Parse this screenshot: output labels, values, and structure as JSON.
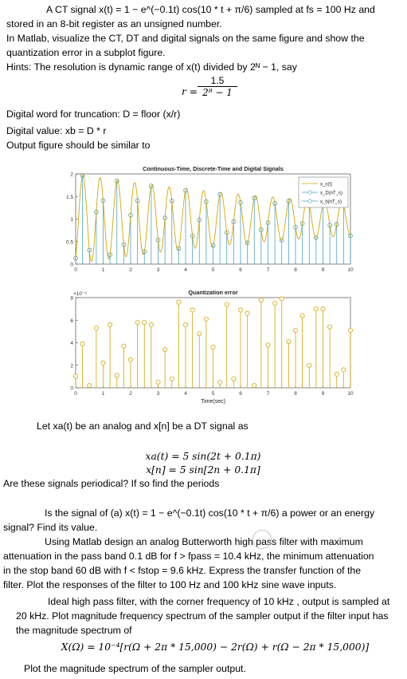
{
  "p1": {
    "l1": "A CT signal x(t) = 1 − e^(−0.1t) cos(10 * t + π/6) sampled at fs = 100 Hz and",
    "l2": "stored in an 8-bit register as an unsigned number.",
    "l3": "In Matlab, visualize the CT, DT and digital signals on the same figure and show the",
    "l4": "quantization error in a subplot figure.",
    "l5": "Hints: The resolution is dynamic range of  x(t) divided by 2ᴺ − 1, say",
    "frac_num": "1.5",
    "frac_lhs": "r =",
    "frac_den": "2⁸ − 1",
    "l6": "Digital word for truncation:  D = floor (x/r)",
    "l7": "Digital value:  xb = D * r",
    "l8": "Output figure should be similar to"
  },
  "chart_data": [
    {
      "type": "line",
      "title": "Continuous-Time, Discrete-Time and Digital Signals",
      "xlim": [
        0,
        10
      ],
      "ylim": [
        0,
        2
      ],
      "xticks": [
        "0",
        "1",
        "2",
        "3",
        "4",
        "5",
        "6",
        "7",
        "8",
        "9",
        "10"
      ],
      "yticks": [
        "0",
        "0.5",
        "1",
        "1.5",
        "2"
      ],
      "legend": [
        "x_c(t)",
        "x_D(nT_s)",
        "x_b(nT_s)"
      ],
      "legend_position": "top-right",
      "colors": {
        "continuous": "#d4a600",
        "discrete": "#4aa3c8",
        "digital": "#4aa3c8"
      },
      "signal": "x(t) = 1 - exp(-0.1t) cos(10t + pi/6)",
      "sample_x": [
        0,
        0.25,
        0.5,
        0.75,
        1,
        1.25,
        1.5,
        1.75,
        2,
        2.25,
        2.5,
        2.75,
        3,
        3.25,
        3.5,
        3.75,
        4,
        4.25,
        4.5,
        4.75,
        5,
        5.25,
        5.5,
        5.75,
        6,
        6.25,
        6.5,
        6.75,
        7,
        7.25,
        7.5,
        7.75,
        8,
        8.25,
        8.5,
        8.75,
        9,
        9.25,
        9.5,
        9.75,
        10
      ]
    },
    {
      "type": "scatter",
      "title": "Quantization error",
      "xlabel": "Time(sec)",
      "exponent": "×10⁻³",
      "xlim": [
        0,
        10
      ],
      "ylim": [
        0,
        8
      ],
      "xticks": [
        "0",
        "1",
        "2",
        "3",
        "4",
        "5",
        "6",
        "7",
        "8",
        "9",
        "10"
      ],
      "yticks": [
        "0",
        "2",
        "4",
        "6",
        "8"
      ],
      "color": "#d4a600",
      "x": [
        0,
        0.25,
        0.5,
        0.75,
        1,
        1.25,
        1.5,
        1.75,
        2,
        2.25,
        2.5,
        2.75,
        3,
        3.25,
        3.5,
        3.75,
        4,
        4.25,
        4.5,
        4.75,
        5,
        5.25,
        5.5,
        5.75,
        6,
        6.25,
        6.5,
        6.75,
        7,
        7.25,
        7.5,
        7.75,
        8,
        8.25,
        8.5,
        8.75,
        9,
        9.25,
        9.5,
        9.75,
        10
      ],
      "values": [
        1.0,
        3.9,
        0.2,
        5.3,
        2.2,
        5.6,
        1.1,
        3.7,
        2.5,
        5.8,
        5.8,
        5.6,
        0.5,
        3.4,
        0.8,
        7.6,
        5.6,
        6.9,
        4.8,
        6.1,
        3.6,
        0.5,
        7.4,
        0.8,
        6.9,
        6.6,
        0.2,
        7.8,
        3.8,
        7.5,
        7.9,
        4.1,
        5.1,
        6.4,
        2.0,
        7.0,
        7.0,
        5.4,
        1.2,
        1.6,
        5.1
      ]
    }
  ],
  "p2": {
    "l1": "Let xa(t) be an analog and x[n] be a DT signal as",
    "e1": "xa(t) = 5 sin(2t + 0.1π)",
    "e2": "x[n] = 5 sin[2n + 0.1π]",
    "l2": "Are these signals periodical? If so find the periods"
  },
  "p3": {
    "l1": "Is the signal of (a) x(t) = 1 − e^(−0.1t) cos(10 * t + π/6)  a power or an energy",
    "l2": "signal? Find its value."
  },
  "p4": {
    "l1": "Using Matlab design an analog Butterworth high pass filter with maximum",
    "l2": "attenuation in the pass band 0.1 dB for f > fpass = 10.4 kHz, the minimum attenuation",
    "l3": "in the stop band 60 dB with f < fstop = 9.6 kHz. Express the transfer function of the",
    "l4": "filter. Plot the responses of the filter to 100 Hz and 100 kHz sine wave inputs."
  },
  "p5": {
    "l1": "Ideal high pass filter, with the corner frequency of 10 kHz , output is sampled at",
    "l2": "20 kHz. Plot magnitude frequency spectrum of the sampler output if the filter input has",
    "l3": "the magnitude spectrum of",
    "e1": "X(Ω) = 10⁻⁴[r(Ω + 2π * 15,000) − 2r(Ω) + r(Ω − 2π * 15,000)]",
    "l4": "Plot the magnitude spectrum of the sampler output."
  }
}
